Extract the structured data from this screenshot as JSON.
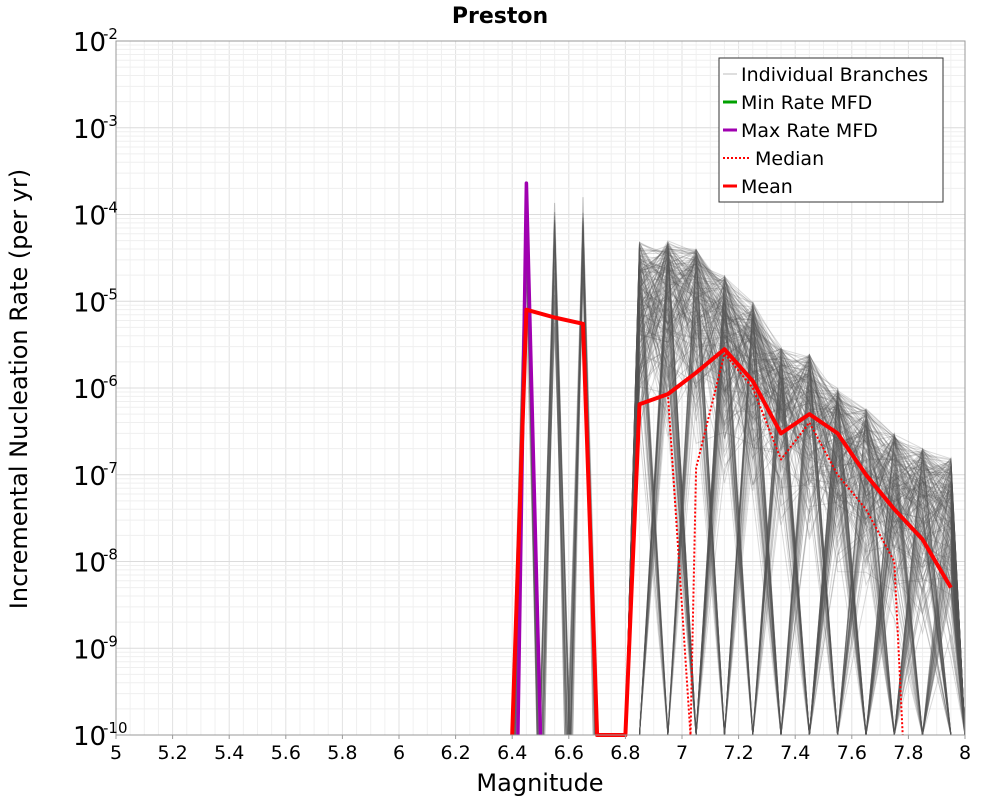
{
  "chart_data": {
    "type": "line",
    "title": "Preston",
    "xlabel": "Magnitude",
    "ylabel": "Incremental Nucleation Rate (per yr)",
    "xlim": [
      5,
      8
    ],
    "ylim": [
      1e-10,
      0.01
    ],
    "yscale": "log",
    "grid": true,
    "xticks": [
      5,
      5.2,
      5.4,
      5.6,
      5.8,
      6,
      6.2,
      6.4,
      6.6,
      6.8,
      7,
      7.2,
      7.4,
      7.6,
      7.8,
      8
    ],
    "xtick_labels": [
      "5",
      "5.2",
      "5.4",
      "5.6",
      "5.8",
      "6",
      "6.2",
      "6.4",
      "6.6",
      "6.8",
      "7",
      "7.2",
      "7.4",
      "7.6",
      "7.8",
      "8"
    ],
    "yticks": [
      {
        "base": "10",
        "exp": "-10"
      },
      {
        "base": "10",
        "exp": "-9"
      },
      {
        "base": "10",
        "exp": "-8"
      },
      {
        "base": "10",
        "exp": "-7"
      },
      {
        "base": "10",
        "exp": "-6"
      },
      {
        "base": "10",
        "exp": "-5"
      },
      {
        "base": "10",
        "exp": "-4"
      },
      {
        "base": "10",
        "exp": "-3"
      },
      {
        "base": "10",
        "exp": "-2"
      }
    ],
    "legend_position": "top-right",
    "legend": [
      {
        "label": "Individual Branches",
        "color": "#bdbdbd",
        "style": "solid"
      },
      {
        "label": "Min Rate MFD",
        "color": "#00a000",
        "style": "solid"
      },
      {
        "label": "Max Rate MFD",
        "color": "#a000b0",
        "style": "solid"
      },
      {
        "label": "Median",
        "color": "#ff0000",
        "style": "dotted"
      },
      {
        "label": "Mean",
        "color": "#ff0000",
        "style": "solid"
      }
    ],
    "series": [
      {
        "name": "Mean",
        "color": "#ff0000",
        "style": "solid",
        "x": [
          6.4,
          6.45,
          6.55,
          6.65,
          6.7,
          6.8,
          6.85,
          6.95,
          7.05,
          7.15,
          7.25,
          7.35,
          7.45,
          7.55,
          7.65,
          7.75,
          7.85,
          7.95
        ],
        "y": [
          1e-10,
          8e-06,
          6.5e-06,
          5.5e-06,
          1e-10,
          1e-10,
          6.5e-07,
          8.5e-07,
          1.5e-06,
          2.8e-06,
          1.2e-06,
          3e-07,
          5e-07,
          3e-07,
          1e-07,
          4e-08,
          1.8e-08,
          5e-09
        ]
      },
      {
        "name": "Median",
        "color": "#ff0000",
        "style": "dotted",
        "x": [
          6.4,
          6.45,
          6.55,
          6.65,
          6.7,
          6.8,
          6.85,
          6.95,
          7.03,
          7.05,
          7.15,
          7.25,
          7.35,
          7.45,
          7.55,
          7.65,
          7.75,
          7.78
        ],
        "y": [
          1e-10,
          8e-06,
          6.5e-06,
          5.5e-06,
          1e-10,
          1e-10,
          6.5e-07,
          8.5e-07,
          1e-10,
          1.2e-07,
          2.5e-06,
          1e-06,
          1.5e-07,
          4e-07,
          1e-07,
          4e-08,
          1e-08,
          1e-10
        ]
      },
      {
        "name": "Max Rate MFD",
        "color": "#a000b0",
        "style": "solid",
        "x": [
          6.42,
          6.45,
          6.5
        ],
        "y": [
          1e-10,
          0.00023,
          1e-10
        ]
      }
    ],
    "individual_branches": {
      "color": "#555555",
      "spikes": [
        {
          "x": 6.55,
          "y": 0.00016
        },
        {
          "x": 6.65,
          "y": 0.00016
        }
      ],
      "peaks_after_6_8": [
        {
          "x": 6.85,
          "y": 5e-05
        },
        {
          "x": 6.95,
          "y": 5e-05
        },
        {
          "x": 7.05,
          "y": 4e-05
        },
        {
          "x": 7.15,
          "y": 2e-05
        },
        {
          "x": 7.25,
          "y": 1e-05
        },
        {
          "x": 7.35,
          "y": 3e-06
        },
        {
          "x": 7.45,
          "y": 2.5e-06
        },
        {
          "x": 7.55,
          "y": 1e-06
        },
        {
          "x": 7.65,
          "y": 6e-07
        },
        {
          "x": 7.75,
          "y": 3e-07
        },
        {
          "x": 7.85,
          "y": 2e-07
        },
        {
          "x": 7.95,
          "y": 1.6e-07
        }
      ]
    }
  }
}
